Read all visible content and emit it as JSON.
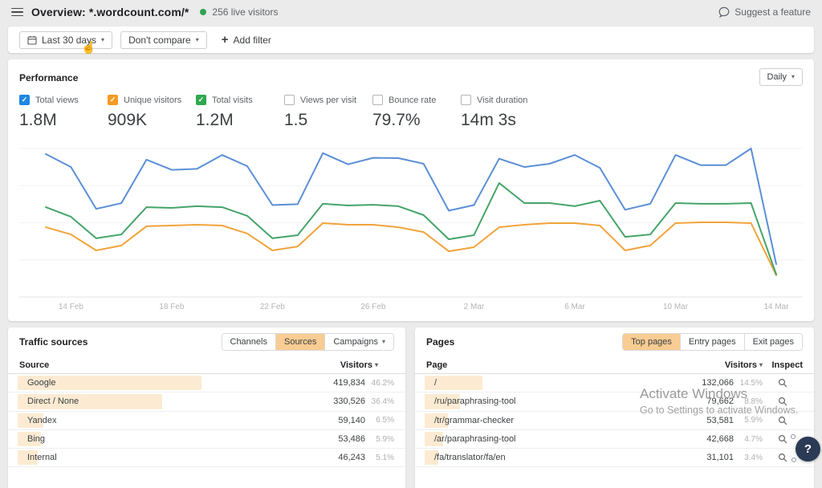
{
  "topbar": {
    "title": "Overview: *.wordcount.com/*",
    "live": "256 live visitors",
    "suggest": "Suggest a feature"
  },
  "filters": {
    "date_range": "Last 30 days",
    "compare": "Don't compare",
    "add_filter": "Add filter"
  },
  "performance": {
    "title": "Performance",
    "interval": "Daily",
    "metrics": [
      {
        "label": "Total views",
        "value": "1.8M",
        "checked": true,
        "color": "#1d87e4"
      },
      {
        "label": "Unique visitors",
        "value": "909K",
        "checked": true,
        "color": "#f59b23"
      },
      {
        "label": "Total visits",
        "value": "1.2M",
        "checked": true,
        "color": "#2fa84f"
      },
      {
        "label": "Views per visit",
        "value": "1.5",
        "checked": false,
        "color": ""
      },
      {
        "label": "Bounce rate",
        "value": "79.7%",
        "checked": false,
        "color": ""
      },
      {
        "label": "Visit duration",
        "value": "14m 3s",
        "checked": false,
        "color": ""
      }
    ]
  },
  "chart_data": {
    "type": "line",
    "x": [
      "13 Feb",
      "14 Feb",
      "15 Feb",
      "16 Feb",
      "17 Feb",
      "18 Feb",
      "19 Feb",
      "20 Feb",
      "21 Feb",
      "22 Feb",
      "23 Feb",
      "24 Feb",
      "25 Feb",
      "26 Feb",
      "27 Feb",
      "28 Feb",
      "1 Mar",
      "2 Mar",
      "3 Mar",
      "4 Mar",
      "5 Mar",
      "6 Mar",
      "7 Mar",
      "8 Mar",
      "9 Mar",
      "10 Mar",
      "11 Mar",
      "12 Mar",
      "13 Mar",
      "14 Mar"
    ],
    "series": [
      {
        "name": "Total views",
        "color": "#5b8fd6",
        "values": [
          77000,
          70000,
          47500,
          50500,
          74000,
          68500,
          69000,
          76500,
          70500,
          49500,
          50000,
          77500,
          71500,
          75000,
          74800,
          71800,
          46500,
          49500,
          74500,
          70000,
          71800,
          76500,
          69600,
          47000,
          50200,
          76500,
          71000,
          71000,
          80000,
          17700
        ]
      },
      {
        "name": "Total visits",
        "color": "#45a469",
        "values": [
          48400,
          43200,
          31600,
          33700,
          48400,
          48000,
          48900,
          48400,
          43700,
          31600,
          33300,
          50200,
          49300,
          49700,
          48900,
          44100,
          31100,
          33300,
          61400,
          50600,
          50600,
          48900,
          51900,
          32400,
          33700,
          50600,
          50200,
          50200,
          50600,
          12100
        ]
      },
      {
        "name": "Unique visitors",
        "color": "#f2a33c",
        "values": [
          37600,
          33700,
          25100,
          27700,
          38100,
          38500,
          38900,
          38500,
          34200,
          25100,
          27200,
          39800,
          38900,
          38900,
          37600,
          35000,
          24600,
          26800,
          37600,
          38900,
          39800,
          39800,
          38500,
          25100,
          27700,
          39800,
          40200,
          40200,
          39800,
          11700
        ]
      }
    ],
    "x_tick_labels": [
      "14 Feb",
      "18 Feb",
      "22 Feb",
      "26 Feb",
      "2 Mar",
      "6 Mar",
      "10 Mar",
      "14 Mar"
    ],
    "x_tick_indices": [
      1,
      5,
      9,
      13,
      17,
      21,
      25,
      29
    ],
    "ylim": [
      0,
      80000
    ],
    "grid": "horizontal",
    "y_axis_labels": false,
    "legend": "none",
    "title": ""
  },
  "traffic_sources": {
    "title": "Traffic sources",
    "tabs": [
      "Channels",
      "Sources",
      "Campaigns"
    ],
    "active_tab": "Sources",
    "col_source": "Source",
    "col_visitors": "Visitors",
    "rows": [
      {
        "source": "Google",
        "visitors": "419,834",
        "percent": "46.2%",
        "bar": 46.2
      },
      {
        "source": "Direct / None",
        "visitors": "330,526",
        "percent": "36.4%",
        "bar": 36.4
      },
      {
        "source": "Yandex",
        "visitors": "59,140",
        "percent": "6.5%",
        "bar": 6.5
      },
      {
        "source": "Bing",
        "visitors": "53,486",
        "percent": "5.9%",
        "bar": 5.9
      },
      {
        "source": "Internal",
        "visitors": "46,243",
        "percent": "5.1%",
        "bar": 5.1
      }
    ]
  },
  "pages": {
    "title": "Pages",
    "tabs": [
      "Top pages",
      "Entry pages",
      "Exit pages"
    ],
    "active_tab": "Top pages",
    "col_page": "Page",
    "col_visitors": "Visitors",
    "col_inspect": "Inspect",
    "rows": [
      {
        "page": "/",
        "visitors": "132,066",
        "percent": "14.5%",
        "bar": 14.5
      },
      {
        "page": "/ru/paraphrasing-tool",
        "visitors": "79,662",
        "percent": "8.8%",
        "bar": 8.8
      },
      {
        "page": "/tr/grammar-checker",
        "visitors": "53,581",
        "percent": "5.9%",
        "bar": 5.9
      },
      {
        "page": "/ar/paraphrasing-tool",
        "visitors": "42,668",
        "percent": "4.7%",
        "bar": 4.7
      },
      {
        "page": "/fa/translator/fa/en",
        "visitors": "31,101",
        "percent": "3.4%",
        "bar": 3.4
      }
    ]
  },
  "watermark": {
    "line1": "Activate Windows",
    "line2": "Go to Settings to activate Windows."
  },
  "help": {
    "label": "?"
  }
}
